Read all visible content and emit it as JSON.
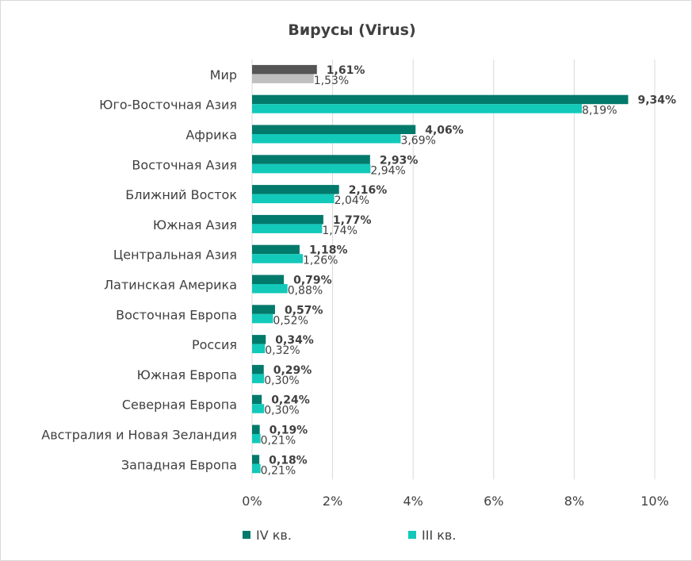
{
  "chart_data": {
    "type": "bar",
    "orientation": "horizontal",
    "title": "Вирусы (Virus)",
    "categories": [
      "Мир",
      "Юго-Восточная Азия",
      "Африка",
      "Восточная Азия",
      "Ближний Восток",
      "Южная Азия",
      "Центральная Азия",
      "Латинская Америка",
      "Восточная Европа",
      "Россия",
      "Южная Европа",
      "Северная Европа",
      "Австралия и Новая Зеландия",
      "Западная Европа"
    ],
    "series": [
      {
        "name": "IV кв.",
        "values": [
          1.61,
          9.34,
          4.06,
          2.93,
          2.16,
          1.77,
          1.18,
          0.79,
          0.57,
          0.34,
          0.29,
          0.24,
          0.19,
          0.18
        ],
        "labels": [
          "1,61%",
          "9,34%",
          "4,06%",
          "2,93%",
          "2,16%",
          "1,77%",
          "1,18%",
          "0,79%",
          "0,57%",
          "0,34%",
          "0,29%",
          "0,24%",
          "0,19%",
          "0,18%"
        ],
        "color": "#027a6b",
        "highlight_color": "#555555"
      },
      {
        "name": "III кв.",
        "values": [
          1.53,
          8.19,
          3.69,
          2.94,
          2.04,
          1.74,
          1.26,
          0.88,
          0.52,
          0.32,
          0.3,
          0.3,
          0.21,
          0.21
        ],
        "labels": [
          "1,53%",
          "8,19%",
          "3,69%",
          "2,94%",
          "2,04%",
          "1,74%",
          "1,26%",
          "0,88%",
          "0,52%",
          "0,32%",
          "0,30%",
          "0,30%",
          "0,21%",
          "0,21%"
        ],
        "color": "#13c9ba",
        "highlight_color": "#bfbfbf"
      }
    ],
    "highlight_category": "Мир",
    "xlim": [
      0,
      10
    ],
    "xticks": [
      0,
      2,
      4,
      6,
      8,
      10
    ],
    "xtick_labels": [
      "0%",
      "2%",
      "4%",
      "6%",
      "8%",
      "10%"
    ],
    "grid": "vertical",
    "legend_position": "bottom"
  }
}
